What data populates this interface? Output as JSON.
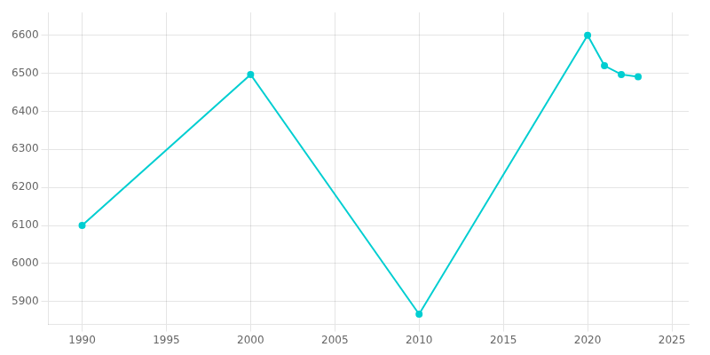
{
  "chart_data": {
    "type": "line",
    "x": [
      1990,
      2000,
      2010,
      2020,
      2021,
      2022,
      2023
    ],
    "values": [
      6100,
      6497,
      5867,
      6600,
      6520,
      6497,
      6491
    ],
    "color": "#00CED1",
    "marker": "circle",
    "xlim": [
      1988,
      2026
    ],
    "ylim": [
      5840,
      6660
    ],
    "xticks": [
      1990,
      1995,
      2000,
      2005,
      2010,
      2015,
      2020,
      2025
    ],
    "yticks": [
      5900,
      6000,
      6100,
      6200,
      6300,
      6400,
      6500,
      6600
    ],
    "grid": true
  }
}
